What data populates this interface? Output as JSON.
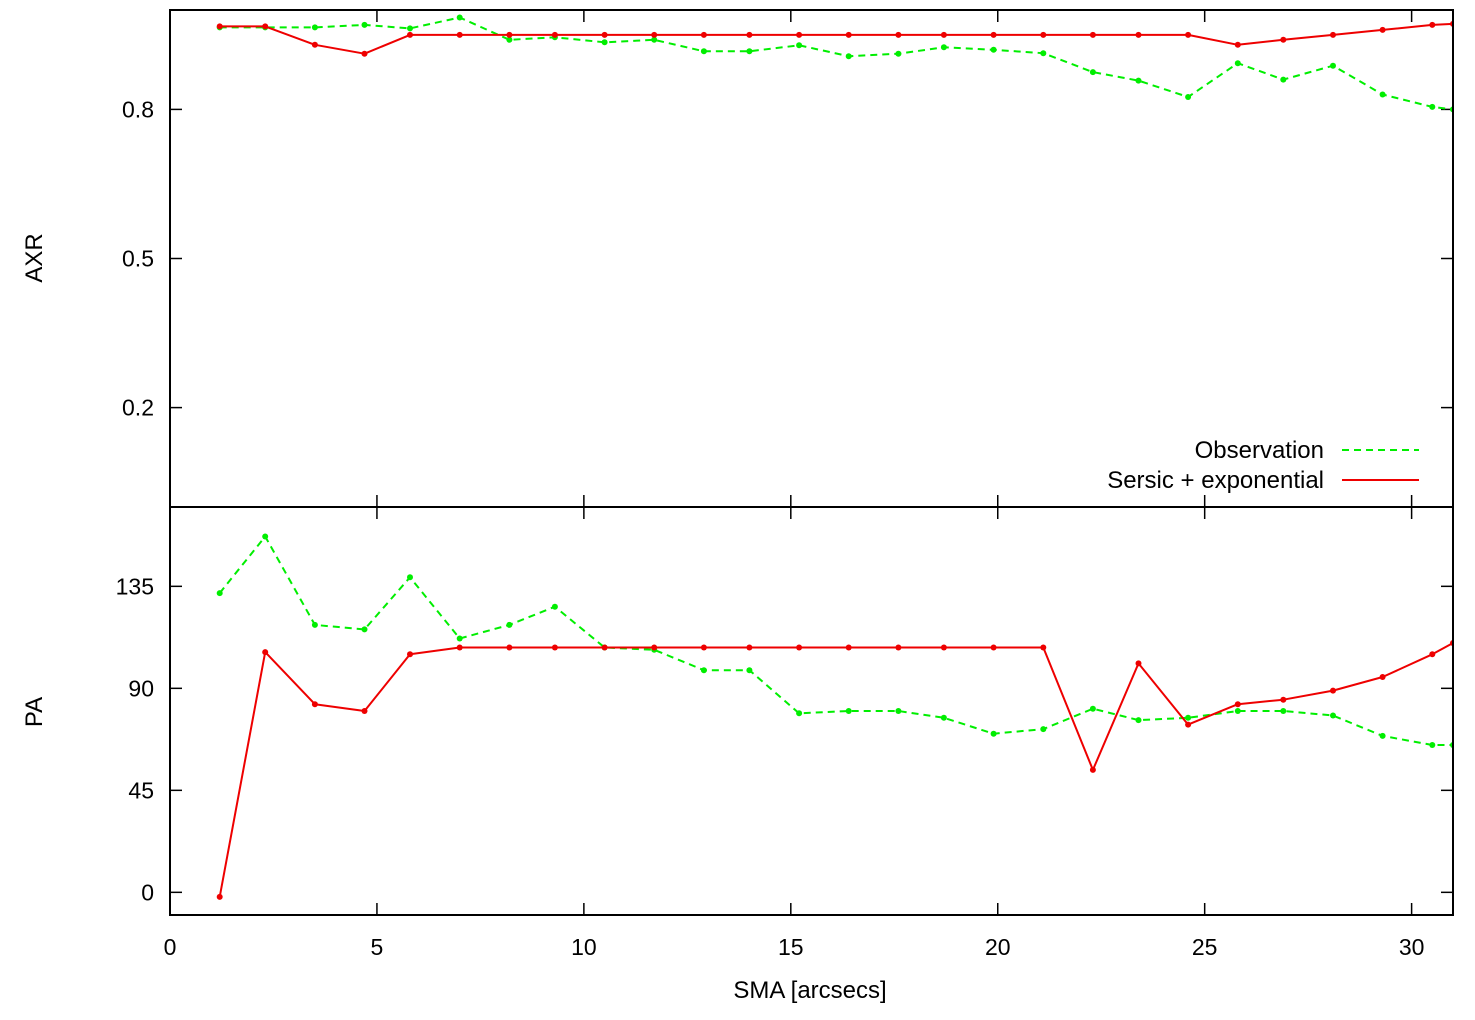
{
  "chart_data": [
    {
      "type": "line",
      "panel": "top",
      "title": "",
      "xlabel": "",
      "ylabel": "AXR",
      "xlim": [
        0,
        31
      ],
      "ylim": [
        0,
        1
      ],
      "yticks": [
        0.2,
        0.5,
        0.8
      ],
      "yticklabels": [
        "0.2",
        "0.5",
        "0.8"
      ],
      "grid": false,
      "legend_position": "bottom-right",
      "series": [
        {
          "name": "Observation",
          "color": "#00ee00",
          "style": "dashed-with-points",
          "x": [
            1.2,
            2.3,
            3.5,
            4.7,
            5.8,
            7.0,
            8.2,
            9.3,
            10.5,
            11.7,
            12.9,
            14.0,
            15.2,
            16.4,
            17.6,
            18.7,
            19.9,
            21.1,
            22.3,
            23.4,
            24.6,
            25.8,
            26.9,
            28.1,
            29.3,
            30.5,
            31.0
          ],
          "values": [
            0.965,
            0.965,
            0.965,
            0.97,
            0.963,
            0.985,
            0.94,
            0.945,
            0.935,
            0.94,
            0.917,
            0.917,
            0.929,
            0.907,
            0.912,
            0.925,
            0.92,
            0.913,
            0.875,
            0.858,
            0.825,
            0.893,
            0.86,
            0.888,
            0.83,
            0.805,
            0.8
          ]
        },
        {
          "name": "Sersic + exponential",
          "color": "#ee0000",
          "style": "solid",
          "x": [
            1.2,
            2.3,
            3.5,
            4.7,
            5.8,
            7.0,
            8.2,
            9.3,
            10.5,
            11.7,
            12.9,
            14.0,
            15.2,
            16.4,
            17.6,
            18.7,
            19.9,
            21.1,
            22.3,
            23.4,
            24.6,
            25.8,
            26.9,
            28.1,
            29.3,
            30.5,
            31.0
          ],
          "values": [
            0.967,
            0.967,
            0.93,
            0.912,
            0.95,
            0.95,
            0.95,
            0.95,
            0.95,
            0.95,
            0.95,
            0.95,
            0.95,
            0.95,
            0.95,
            0.95,
            0.95,
            0.95,
            0.95,
            0.95,
            0.95,
            0.93,
            0.94,
            0.95,
            0.96,
            0.97,
            0.972
          ]
        }
      ]
    },
    {
      "type": "line",
      "panel": "bottom",
      "title": "",
      "xlabel": "SMA [arcsecs]",
      "ylabel": "PA",
      "xlim": [
        0,
        31
      ],
      "ylim": [
        -10,
        170
      ],
      "xticks": [
        0,
        5,
        10,
        15,
        20,
        25,
        30
      ],
      "xticklabels": [
        "0",
        "5",
        "10",
        "15",
        "20",
        "25",
        "30"
      ],
      "yticks": [
        0,
        45,
        90,
        135
      ],
      "yticklabels": [
        "0",
        "45",
        "90",
        "135"
      ],
      "grid": false,
      "series": [
        {
          "name": "Observation",
          "color": "#00ee00",
          "style": "dashed-with-points",
          "x": [
            1.2,
            2.3,
            3.5,
            4.7,
            5.8,
            7.0,
            8.2,
            9.3,
            10.5,
            11.7,
            12.9,
            14.0,
            15.2,
            16.4,
            17.6,
            18.7,
            19.9,
            21.1,
            22.3,
            23.4,
            24.6,
            25.8,
            26.9,
            28.1,
            29.3,
            30.5,
            31.0
          ],
          "values": [
            132,
            157,
            118,
            116,
            139,
            112,
            118,
            126,
            108,
            107,
            98,
            98,
            79,
            80,
            80,
            77,
            70,
            72,
            81,
            76,
            77,
            80,
            80,
            78,
            69,
            65,
            65
          ]
        },
        {
          "name": "Sersic + exponential",
          "color": "#ee0000",
          "style": "solid",
          "x": [
            1.2,
            2.3,
            3.5,
            4.7,
            5.8,
            7.0,
            8.2,
            9.3,
            10.5,
            11.7,
            12.9,
            14.0,
            15.2,
            16.4,
            17.6,
            18.7,
            19.9,
            21.1,
            22.3,
            23.4,
            24.6,
            25.8,
            26.9,
            28.1,
            29.3,
            30.5,
            31.0
          ],
          "values": [
            -2,
            106,
            83,
            80,
            105,
            108,
            108,
            108,
            108,
            108,
            108,
            108,
            108,
            108,
            108,
            108,
            108,
            108,
            54,
            101,
            74,
            83,
            85,
            89,
            95,
            105,
            110
          ]
        }
      ]
    }
  ]
}
